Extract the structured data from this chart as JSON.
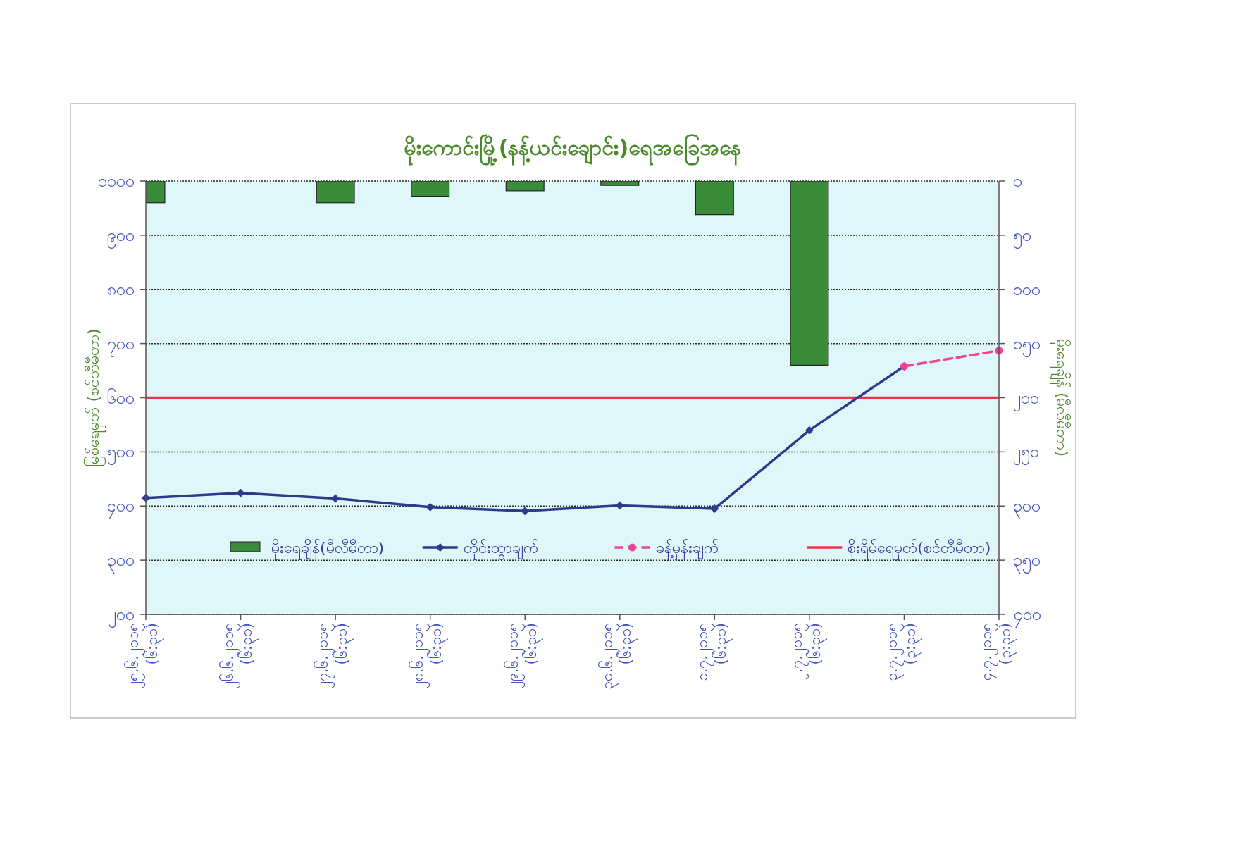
{
  "chart_data": {
    "type": "bar",
    "title": "မိုးကောင်းမြို့(နန့်ယင်းချောင်း)ရေအခြေအနေ",
    "ylabel": "မြစ်ရေမှတ် (စင်တီမီတာ)",
    "y2label": "မိုးရေချိန် (မီလီမီတာ)",
    "categories": [
      "၂၅.၆.၂၀၁၅\n(၆:၃၀)",
      "၂၆.၆.၂၀၁၅\n(၆:၃၀)",
      "၂၇.၆.၂၀၁၅\n(၆:၃၀)",
      "၂၈.၆.၂၀၁၅\n(၆:၃၀)",
      "၂၉.၆.၂၀၁၅\n(၆:၃၀)",
      "၃၀.၆.၂၀၁၅\n(၆:၃၀)",
      "၁.၇.၂၀၁၅\n(၆:၃၀)",
      "၂.၇.၂၀၁၅\n(၆:၃၀)",
      "၃.၇.၂၀၁၅\n(၃:၃၀)",
      "၄.၇.၂၀၁၅\n(၃:၃၀)"
    ],
    "series": [
      {
        "name": "မိုးရေချိန်(မီလီမီတာ)",
        "type": "bar",
        "axis": "y2",
        "color": "#3a8c3a",
        "values": [
          20,
          null,
          20,
          14,
          9,
          4,
          31,
          170,
          null,
          null
        ]
      },
      {
        "name": "တိုင်းထွာချက်",
        "type": "line",
        "color": "#2e3a8c",
        "marker": "diamond",
        "line_style": "solid",
        "values": [
          415,
          424,
          414,
          398,
          391,
          401,
          395,
          540,
          658,
          null
        ]
      },
      {
        "name": "ခန့်မှန်းချက်",
        "type": "line",
        "color": "#ee4499",
        "marker": "circle",
        "line_style": "dashed",
        "values": [
          null,
          null,
          null,
          null,
          null,
          null,
          null,
          null,
          658,
          687
        ]
      }
    ],
    "ref_lines": [
      {
        "axis": "y",
        "value": 600,
        "label": "စိုးရိမ်ရေမှတ်(စင်တီမီတာ)",
        "color": "#ee3344"
      }
    ],
    "ylim": [
      200,
      1000
    ],
    "yticks": [
      {
        "value": 200,
        "label": "၂၀၀"
      },
      {
        "value": 300,
        "label": "၃၀၀"
      },
      {
        "value": 400,
        "label": "၄၀၀"
      },
      {
        "value": 500,
        "label": "၅၀၀"
      },
      {
        "value": 600,
        "label": "၆၀၀"
      },
      {
        "value": 700,
        "label": "၇၀၀"
      },
      {
        "value": 800,
        "label": "၈၀၀"
      },
      {
        "value": 900,
        "label": "၉၀၀"
      },
      {
        "value": 1000,
        "label": "၁၀၀၀"
      }
    ],
    "y2lim": [
      400,
      0
    ],
    "y2ticks": [
      {
        "value": 0,
        "label": "၀"
      },
      {
        "value": 50,
        "label": "၅၀"
      },
      {
        "value": 100,
        "label": "၁၀၀"
      },
      {
        "value": 150,
        "label": "၁၅၀"
      },
      {
        "value": 200,
        "label": "၂၀၀"
      },
      {
        "value": 250,
        "label": "၂၅၀"
      },
      {
        "value": 300,
        "label": "၃၀၀"
      },
      {
        "value": 350,
        "label": "၃၅၀"
      },
      {
        "value": 400,
        "label": "၄၀၀"
      }
    ],
    "grid": "y",
    "legend": "bottom"
  }
}
